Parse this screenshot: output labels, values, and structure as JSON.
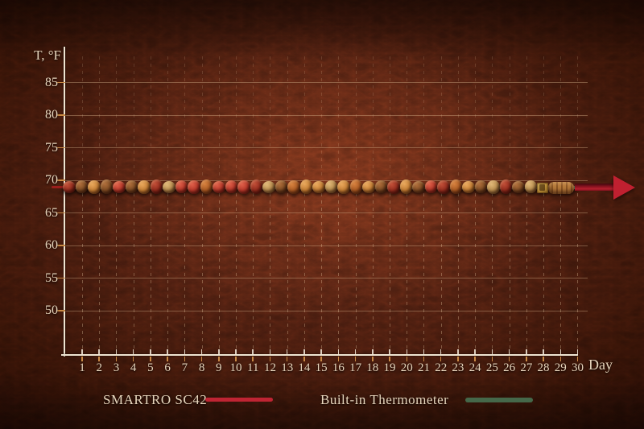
{
  "chart_data": {
    "type": "line",
    "title": "",
    "xlabel": "Day",
    "ylabel": "T, °F",
    "x_ticks": [
      1,
      2,
      3,
      4,
      5,
      6,
      7,
      8,
      9,
      10,
      11,
      12,
      13,
      14,
      15,
      16,
      17,
      18,
      19,
      20,
      21,
      22,
      23,
      24,
      25,
      26,
      27,
      28,
      29,
      30
    ],
    "y_ticks": [
      85,
      80,
      75,
      70,
      65,
      60,
      55,
      50
    ],
    "xlim": [
      1,
      30
    ],
    "ylim": [
      50,
      85
    ],
    "grid": "on",
    "legend_position": "bottom",
    "series": [
      {
        "name": "SMARTRO SC42",
        "color": "#bf2433",
        "values": [
          70,
          70,
          70,
          70,
          70,
          70,
          70,
          70,
          70,
          70,
          70,
          70,
          70,
          70,
          70,
          70,
          70,
          70,
          70,
          70,
          70,
          70,
          70,
          70,
          70,
          70,
          70,
          70,
          70,
          70
        ]
      },
      {
        "name": "Built-in Thermometer",
        "color": "#45684a",
        "values": [
          70,
          70,
          70,
          70,
          70,
          70,
          70,
          70,
          70,
          70,
          70,
          70,
          70,
          70,
          70,
          70,
          70,
          70,
          70,
          70,
          70,
          70,
          70,
          70,
          70,
          70,
          70,
          70,
          70,
          70
        ]
      }
    ],
    "annotation": "Both series flat at 70 °F for 30 days; line drawn as a bead bracelet on a green cord ending in a red arrow"
  },
  "axis": {
    "y_title": "T, °F",
    "x_title": "Day"
  },
  "legend": {
    "items": [
      {
        "label": "SMARTRO SC42",
        "swatch_color": "#bf2433"
      },
      {
        "label": "Built-in Thermometer",
        "swatch_color": "#45684a"
      }
    ]
  },
  "beads": {
    "cord_color": "#5d7450",
    "sequence": [
      "darkred",
      "brown",
      "orange",
      "brown",
      "red",
      "brown",
      "orange",
      "darkred",
      "tan",
      "red",
      "red",
      "rust",
      "red",
      "red",
      "red",
      "darkred",
      "tan",
      "brown",
      "rust",
      "orange",
      "orange",
      "tan",
      "orange",
      "rust",
      "orange",
      "brown",
      "darkred",
      "orange",
      "brown",
      "red",
      "darkred",
      "rust",
      "orange",
      "brown",
      "tan",
      "darkred",
      "brown",
      "tan",
      "gold-clasp",
      "wood-barrel"
    ],
    "palette": {
      "red": [
        "#e0604a",
        "#b23527",
        "#731710"
      ],
      "darkred": [
        "#c24f38",
        "#8f2a1c",
        "#59110b"
      ],
      "orange": [
        "#eaa85c",
        "#bf7a31",
        "#7a4513"
      ],
      "rust": [
        "#d8823f",
        "#a65721",
        "#6a3410"
      ],
      "brown": [
        "#b06f3c",
        "#7c4a22",
        "#44240e"
      ],
      "tan": [
        "#e0b878",
        "#b28749",
        "#6b481d"
      ]
    }
  },
  "colors": {
    "text": "#e8d6bd",
    "axis_line": "#efe4d1",
    "grid_line": "#deba92",
    "tick_orange": "#c98a45",
    "arrow_head": "#c02030",
    "arrow_shaft": "#8e1420",
    "gold_clasp": "#c9a23f",
    "leather_center": "#5b2b1b",
    "leather_edge": "#1a0804"
  }
}
